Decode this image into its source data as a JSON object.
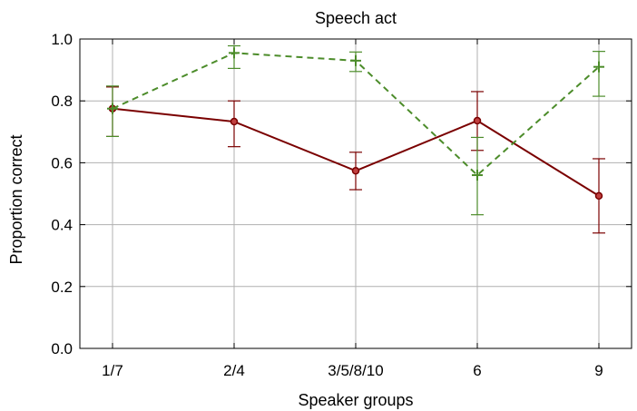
{
  "chart_data": {
    "type": "line",
    "title": "Speech act",
    "xlabel": "Speaker groups",
    "ylabel": "Proportion correct",
    "categories": [
      "1/7",
      "2/4",
      "3/5/8/10",
      "6",
      "9"
    ],
    "ylim": [
      0.0,
      1.0
    ],
    "yticks": [
      "0.0",
      "0.2",
      "0.4",
      "0.6",
      "0.8",
      "1.0"
    ],
    "grid": true,
    "legend": "none",
    "series": [
      {
        "color": "#7a0000",
        "line_style": "solid",
        "marker": "circle",
        "values": [
          0.775,
          0.733,
          0.574,
          0.736,
          0.493
        ],
        "err_low": [
          0.685,
          0.652,
          0.513,
          0.64,
          0.373
        ],
        "err_high": [
          0.845,
          0.8,
          0.634,
          0.83,
          0.613
        ]
      },
      {
        "color": "#4c8c2a",
        "line_style": "dashed",
        "marker": "plus",
        "values": [
          0.775,
          0.955,
          0.93,
          0.56,
          0.91
        ],
        "err_low": [
          0.685,
          0.905,
          0.895,
          0.432,
          0.815
        ],
        "err_high": [
          0.848,
          0.978,
          0.958,
          0.682,
          0.96
        ]
      }
    ]
  }
}
